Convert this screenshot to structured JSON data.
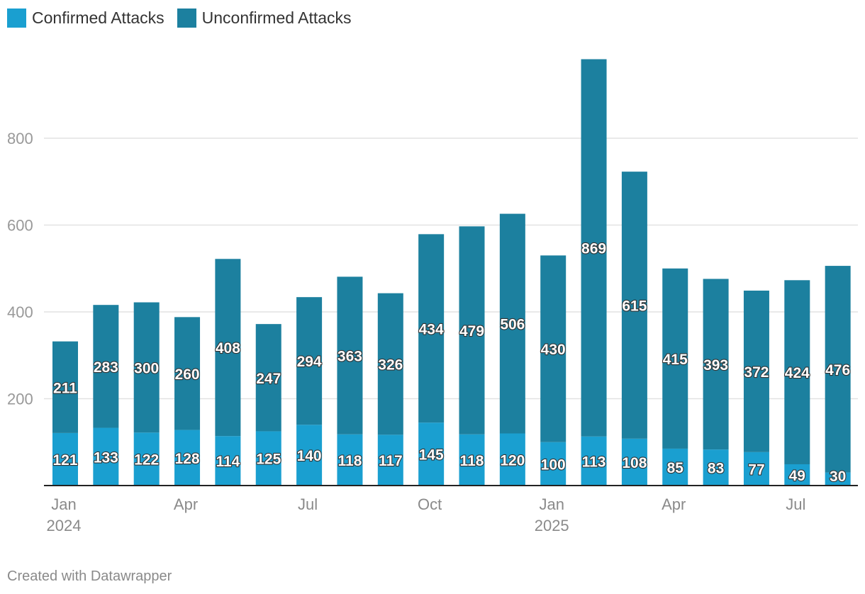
{
  "chart_data": {
    "type": "bar",
    "stacked": true,
    "categories": [
      "Jan 2024",
      "Feb 2024",
      "Mar 2024",
      "Apr 2024",
      "May 2024",
      "Jun 2024",
      "Jul 2024",
      "Aug 2024",
      "Sep 2024",
      "Oct 2024",
      "Nov 2024",
      "Dec 2024",
      "Jan 2025",
      "Feb 2025",
      "Mar 2025",
      "Apr 2025",
      "May 2025",
      "Jun 2025",
      "Jul 2025",
      "Aug 2025"
    ],
    "series": [
      {
        "name": "Confirmed Attacks",
        "color": "#1a9fd0",
        "values": [
          121,
          133,
          122,
          128,
          114,
          125,
          140,
          118,
          117,
          145,
          118,
          120,
          100,
          113,
          108,
          85,
          83,
          77,
          49,
          30
        ]
      },
      {
        "name": "Unconfirmed Attacks",
        "color": "#1c809f",
        "values": [
          211,
          283,
          300,
          260,
          408,
          247,
          294,
          363,
          326,
          434,
          479,
          506,
          430,
          869,
          615,
          415,
          393,
          372,
          424,
          476
        ]
      }
    ],
    "ylim": [
      0,
      1000
    ],
    "yticks": [
      200,
      400,
      600,
      800
    ],
    "xticks": [
      {
        "index": 0,
        "label": "Jan",
        "sublabel": "2024"
      },
      {
        "index": 3,
        "label": "Apr",
        "sublabel": ""
      },
      {
        "index": 6,
        "label": "Jul",
        "sublabel": ""
      },
      {
        "index": 9,
        "label": "Oct",
        "sublabel": ""
      },
      {
        "index": 12,
        "label": "Jan",
        "sublabel": "2025"
      },
      {
        "index": 15,
        "label": "Apr",
        "sublabel": ""
      },
      {
        "index": 18,
        "label": "Jul",
        "sublabel": ""
      }
    ],
    "legend_position": "top-left",
    "grid": true
  },
  "legend": {
    "confirmed_label": "Confirmed Attacks",
    "unconfirmed_label": "Unconfirmed Attacks"
  },
  "credit": "Created with Datawrapper"
}
